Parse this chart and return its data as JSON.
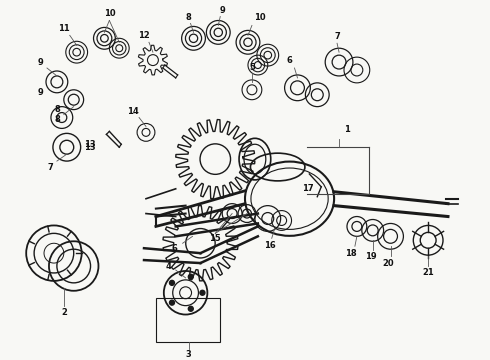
{
  "background_color": "#f8f8f5",
  "line_color": "#1a1a1a",
  "figsize": [
    4.9,
    3.6
  ],
  "dpi": 100,
  "xlim": [
    0,
    490
  ],
  "ylim": [
    0,
    360
  ]
}
